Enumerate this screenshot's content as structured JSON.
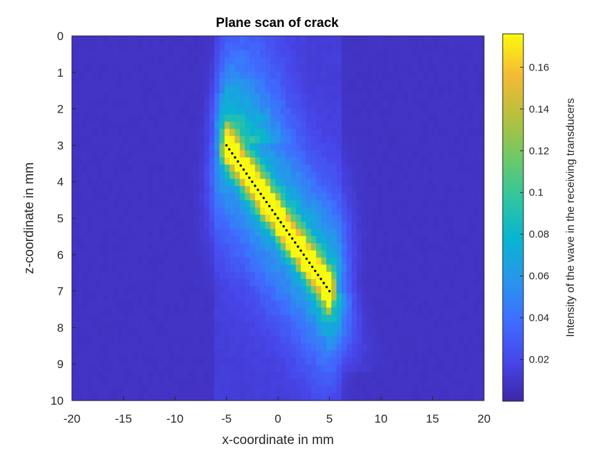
{
  "chart_data": {
    "type": "heatmap",
    "title": "Plane scan of crack",
    "xlabel": "x-coordinate in mm",
    "ylabel": "z-coordinate in mm",
    "xlim": [
      -20,
      20
    ],
    "ylim": [
      0,
      10
    ],
    "y_direction": "reversed (0 at top)",
    "x_ticks": [
      "-20",
      "-15",
      "-10",
      "-5",
      "0",
      "5",
      "10",
      "15",
      "20"
    ],
    "y_ticks": [
      "0",
      "1",
      "2",
      "3",
      "4",
      "5",
      "6",
      "7",
      "8",
      "9",
      "10"
    ],
    "colormap": "parula",
    "colorbar": {
      "label": "Intensity of the wave in the receiving transducers",
      "range": [
        0.0,
        0.176
      ],
      "ticks": [
        "0.02",
        "0.04",
        "0.06",
        "0.08",
        "0.1",
        "0.12",
        "0.14",
        "0.16"
      ],
      "placement": "right"
    },
    "intensity_model": {
      "background": 0.008,
      "crack_line": {
        "x_start": -5,
        "z_start": 3,
        "x_end": 5,
        "z_end": 7
      },
      "peak_intensity": 0.165,
      "note_peaks_along_crack": [
        [
          -4.7,
          3.3,
          0.15
        ],
        [
          -2,
          4.1,
          0.165
        ],
        [
          1,
          5.1,
          0.16
        ],
        [
          3.5,
          6.2,
          0.15
        ]
      ]
    },
    "crack_overlay": {
      "style": "black dotted line",
      "x": [
        -5,
        5
      ],
      "z": [
        3,
        7
      ],
      "color": "#000000"
    },
    "grid": false,
    "grid_cells": {
      "nx": 81,
      "nz": 51
    }
  }
}
